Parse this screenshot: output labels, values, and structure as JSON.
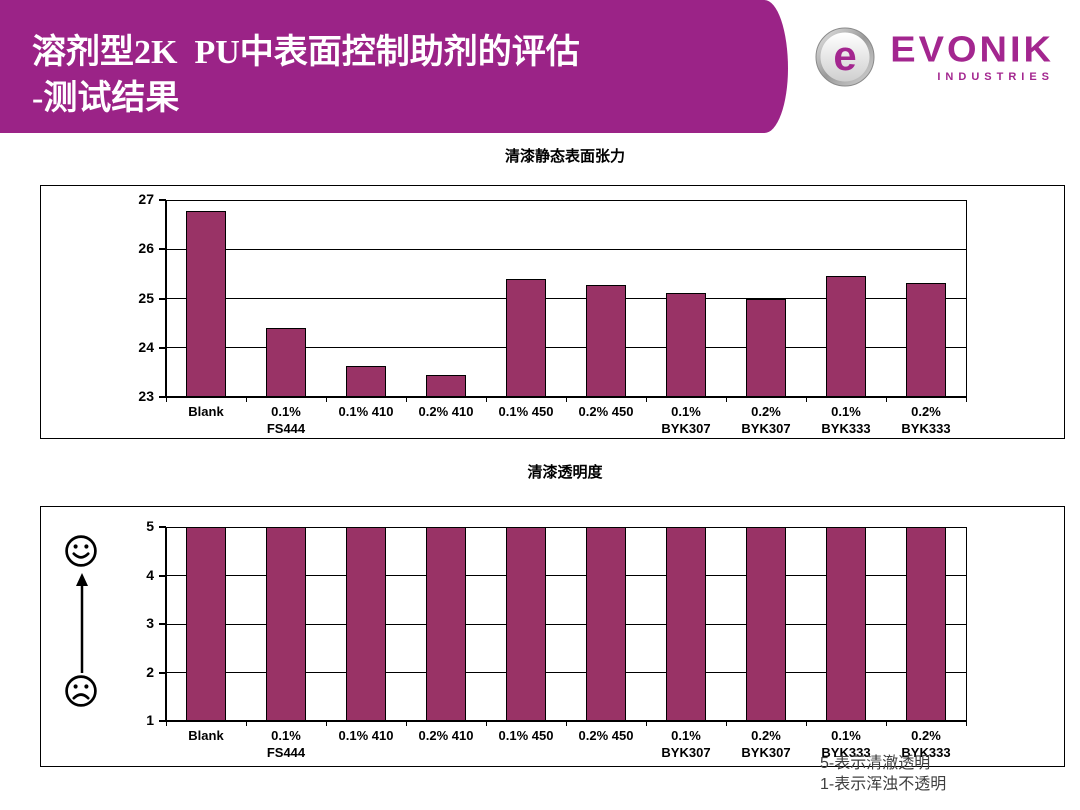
{
  "header": {
    "title_line1": "溶剂型2K  PU中表面控制助剂的评估",
    "title_line2": "-测试结果"
  },
  "logo": {
    "brand": "EVONIK",
    "sub": "INDUSTRIES",
    "badge_letter": "e"
  },
  "colors": {
    "header_bg": "#9B2387",
    "brand_purple": "#A3268F",
    "bar_fill": "#993366"
  },
  "footnote": {
    "line1": "5-表示清澈透明",
    "line2": "1-表示浑浊不透明"
  },
  "chart_data": [
    {
      "type": "bar",
      "title": "清漆静态表面张力",
      "categories": [
        [
          "Blank"
        ],
        [
          "0.1%",
          "FS444"
        ],
        [
          "0.1% 410"
        ],
        [
          "0.2% 410"
        ],
        [
          "0.1% 450"
        ],
        [
          "0.2% 450"
        ],
        [
          "0.1%",
          "BYK307"
        ],
        [
          "0.2%",
          "BYK307"
        ],
        [
          "0.1%",
          "BYK333"
        ],
        [
          "0.2%",
          "BYK333"
        ]
      ],
      "values": [
        26.78,
        24.4,
        23.62,
        23.45,
        25.4,
        25.28,
        25.12,
        25.0,
        25.45,
        25.32
      ],
      "xlabel": "",
      "ylabel": "",
      "ylim": [
        23,
        27
      ],
      "yticks": [
        23,
        24,
        25,
        26,
        27
      ],
      "grid": true,
      "legend": false,
      "bar_color": "#993366"
    },
    {
      "type": "bar",
      "title": "清漆透明度",
      "categories": [
        [
          "Blank"
        ],
        [
          "0.1%",
          "FS444"
        ],
        [
          "0.1% 410"
        ],
        [
          "0.2% 410"
        ],
        [
          "0.1% 450"
        ],
        [
          "0.2% 450"
        ],
        [
          "0.1%",
          "BYK307"
        ],
        [
          "0.2%",
          "BYK307"
        ],
        [
          "0.1%",
          "BYK333"
        ],
        [
          "0.2%",
          "BYK333"
        ]
      ],
      "values": [
        5,
        5,
        5,
        5,
        5,
        5,
        5,
        5,
        5,
        5
      ],
      "xlabel": "",
      "ylabel": "",
      "ylim": [
        1,
        5
      ],
      "yticks": [
        1,
        2,
        3,
        4,
        5
      ],
      "grid": true,
      "legend": false,
      "bar_color": "#993366",
      "annotation": "向上箭头：从哭脸到笑脸（越高越好）"
    }
  ]
}
